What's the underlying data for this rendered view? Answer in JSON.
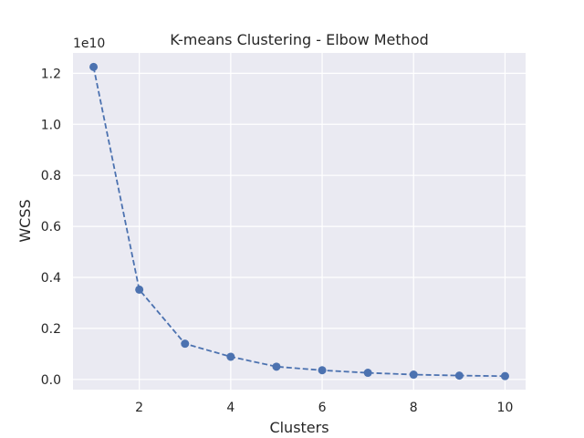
{
  "chart_data": {
    "type": "line",
    "title": "K-means Clustering - Elbow Method",
    "xlabel": "Clusters",
    "ylabel": "WCSS",
    "y_offset_label": "1e10",
    "x_ticks": [
      2,
      4,
      6,
      8,
      10
    ],
    "y_ticks": [
      "0.0",
      "0.2",
      "0.4",
      "0.6",
      "0.8",
      "1.0",
      "1.2"
    ],
    "xlim": [
      0.55,
      10.45
    ],
    "ylim": [
      -0.04,
      1.28
    ],
    "grid": true,
    "series": [
      {
        "color": "#4c72b0",
        "line_style": "dashed",
        "marker": "circle",
        "x": [
          1,
          2,
          3,
          4,
          5,
          6,
          7,
          8,
          9,
          10
        ],
        "y": [
          1.225,
          0.352,
          0.14,
          0.089,
          0.05,
          0.036,
          0.026,
          0.019,
          0.015,
          0.013
        ]
      }
    ]
  }
}
